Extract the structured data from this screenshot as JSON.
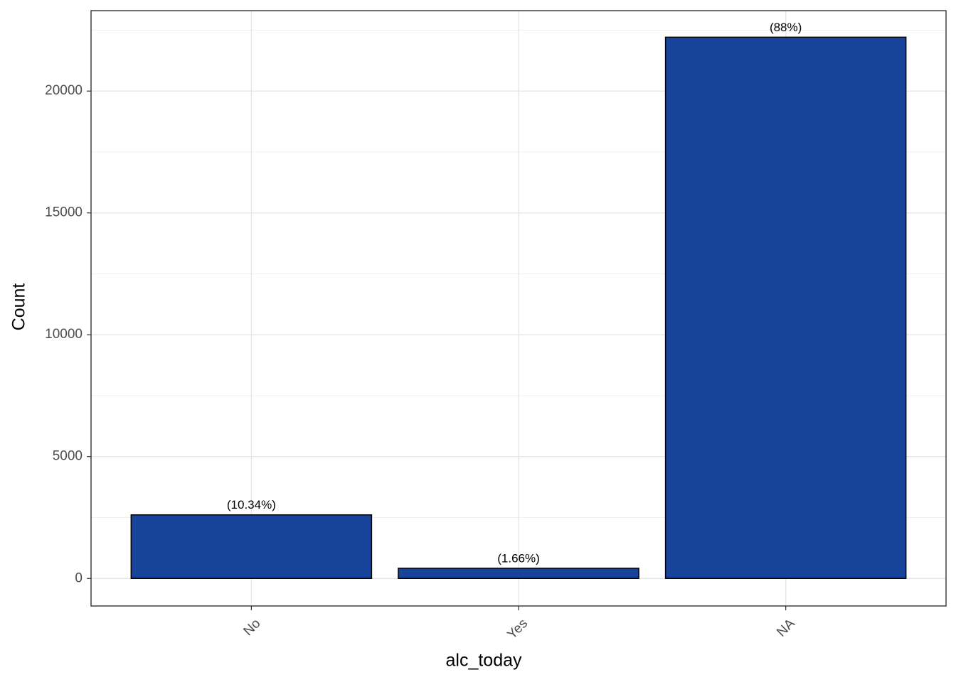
{
  "chart_data": {
    "type": "bar",
    "x_label": "alc_today",
    "y_label": "Count",
    "categories": [
      "No",
      "Yes",
      "NA"
    ],
    "values": [
      2610,
      419,
      22211
    ],
    "labels": [
      "(10.34%)",
      "(1.66%)",
      "(88%)"
    ],
    "color": "#17449a",
    "ylim": [
      -1130,
      23300
    ],
    "yticks": [
      0,
      5000,
      10000,
      15000,
      20000
    ],
    "grid": true
  }
}
